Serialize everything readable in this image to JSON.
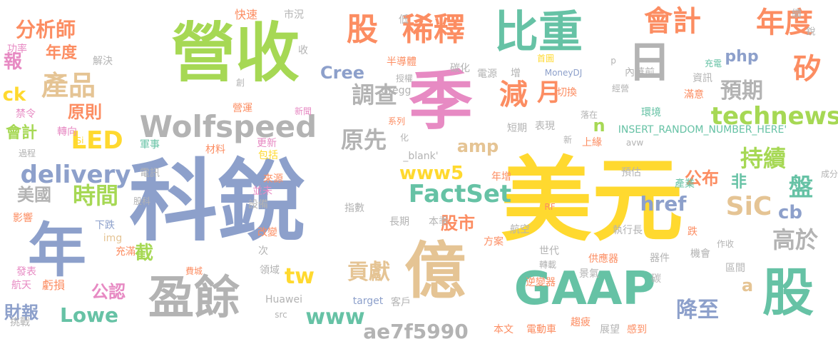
{
  "words": [
    {
      "text": "科銳",
      "color": "#8da0cb",
      "vertical": false
    },
    {
      "text": "美元",
      "color": "#ffd92f",
      "vertical": false
    },
    {
      "text": "營收",
      "color": "#a6d854",
      "vertical": false
    },
    {
      "text": "季",
      "color": "#e78ac3",
      "vertical": false
    },
    {
      "text": "年",
      "color": "#8da0cb",
      "vertical": false
    },
    {
      "text": "億",
      "color": "#e5c494",
      "vertical": false
    },
    {
      "text": "GAAP",
      "color": "#66c2a5",
      "vertical": false
    },
    {
      "text": "日",
      "color": "#b3b3b3",
      "vertical": true
    },
    {
      "text": "股",
      "color": "#66c2a5",
      "vertical": false
    },
    {
      "text": "盈餘",
      "color": "#b3b3b3",
      "vertical": false
    },
    {
      "text": "比重",
      "color": "#66c2a5",
      "vertical": false
    },
    {
      "text": "股",
      "color": "#fc8d62",
      "vertical": false
    },
    {
      "text": "稀釋",
      "color": "#fc8d62",
      "vertical": false
    },
    {
      "text": "會計",
      "color": "#fc8d62",
      "vertical": false
    },
    {
      "text": "年度",
      "color": "#fc8d62",
      "vertical": false
    },
    {
      "text": "Wolfspeed",
      "color": "#b3b3b3",
      "vertical": false
    },
    {
      "text": "減",
      "color": "#fc8d62",
      "vertical": false
    },
    {
      "text": "月",
      "color": "#fc8d62",
      "vertical": false
    },
    {
      "text": "矽",
      "color": "#fc8d62",
      "vertical": false
    },
    {
      "text": "technews",
      "color": "#a6d854",
      "vertical": false
    },
    {
      "text": "產品",
      "color": "#e5c494",
      "vertical": false
    },
    {
      "text": "分析師",
      "color": "#fc8d62",
      "vertical": false
    },
    {
      "text": "LED",
      "color": "#ffd92f",
      "vertical": false
    },
    {
      "text": "delivery",
      "color": "#8da0cb",
      "vertical": false
    },
    {
      "text": "FactSet",
      "color": "#66c2a5",
      "vertical": false
    },
    {
      "text": "www5",
      "color": "#ffd92f",
      "vertical": false
    },
    {
      "text": "SiC",
      "color": "#e5c494",
      "vertical": false
    },
    {
      "text": "調查",
      "color": "#b3b3b3",
      "vertical": false
    },
    {
      "text": "原先",
      "color": "#b3b3b3",
      "vertical": false
    },
    {
      "text": "預期",
      "color": "#b3b3b3",
      "vertical": false
    },
    {
      "text": "持續",
      "color": "#a6d854",
      "vertical": false
    },
    {
      "text": "高於",
      "color": "#b3b3b3",
      "vertical": false
    },
    {
      "text": "時間",
      "color": "#a6d854",
      "vertical": false
    },
    {
      "text": "盤",
      "color": "#66c2a5",
      "vertical": false
    },
    {
      "text": "降至",
      "color": "#8da0cb",
      "vertical": false
    },
    {
      "text": "貢獻",
      "color": "#e5c494",
      "vertical": false
    },
    {
      "text": "Lowe",
      "color": "#66c2a5",
      "vertical": false
    },
    {
      "text": "www",
      "color": "#66c2a5",
      "vertical": false
    },
    {
      "text": "ae7f5990",
      "color": "#b3b3b3",
      "vertical": false
    },
    {
      "text": "tw",
      "color": "#ffd92f",
      "vertical": false
    },
    {
      "text": "Cree",
      "color": "#8da0cb",
      "vertical": false
    },
    {
      "text": "href",
      "color": "#8da0cb",
      "vertical": false
    },
    {
      "text": "股市",
      "color": "#fc8d62",
      "vertical": false
    },
    {
      "text": "公布",
      "color": "#fc8d62",
      "vertical": false
    },
    {
      "text": "cb",
      "color": "#8da0cb",
      "vertical": false
    },
    {
      "text": "美國",
      "color": "#b3b3b3",
      "vertical": false
    },
    {
      "text": "財報",
      "color": "#8da0cb",
      "vertical": false
    },
    {
      "text": "公認",
      "color": "#e78ac3",
      "vertical": false
    },
    {
      "text": "截",
      "color": "#a6d854",
      "vertical": false
    },
    {
      "text": "報",
      "color": "#e78ac3",
      "vertical": false
    },
    {
      "text": "年度",
      "color": "#fc8d62",
      "vertical": false
    },
    {
      "text": "ck",
      "color": "#ffd92f",
      "vertical": false
    },
    {
      "text": "原則",
      "color": "#fc8d62",
      "vertical": false
    },
    {
      "text": "會計",
      "color": "#a6d854",
      "vertical": false
    },
    {
      "text": "非",
      "color": "#66c2a5",
      "vertical": false
    },
    {
      "text": "php",
      "color": "#8da0cb",
      "vertical": false
    },
    {
      "text": "amp",
      "color": "#e5c494",
      "vertical": false
    },
    {
      "text": "a",
      "color": "#e5c494",
      "vertical": false
    },
    {
      "text": "n",
      "color": "#a6d854",
      "vertical": false
    },
    {
      "text": "快速",
      "color": "#fc8d62",
      "vertical": false
    },
    {
      "text": "市況",
      "color": "#b3b3b3",
      "vertical": false
    },
    {
      "text": "低",
      "color": "#b3b3b3",
      "vertical": false
    },
    {
      "text": "收",
      "color": "#b3b3b3",
      "vertical": false
    },
    {
      "text": "首圖",
      "color": "#ffd92f",
      "vertical": false
    },
    {
      "text": "續",
      "color": "#b3b3b3",
      "vertical": false
    },
    {
      "text": "銳",
      "color": "#b3b3b3",
      "vertical": false
    },
    {
      "text": "功率",
      "color": "#e78ac3",
      "vertical": false
    },
    {
      "text": "解決",
      "color": "#b3b3b3",
      "vertical": false
    },
    {
      "text": "半導體",
      "color": "#fc8d62",
      "vertical": false
    },
    {
      "text": "碳化",
      "color": "#b3b3b3",
      "vertical": false
    },
    {
      "text": "授權",
      "color": "#b3b3b3",
      "vertical": false
    },
    {
      "text": "Gregg",
      "color": "#b3b3b3",
      "vertical": false
    },
    {
      "text": "電源",
      "color": "#b3b3b3",
      "vertical": false
    },
    {
      "text": "增",
      "color": "#b3b3b3",
      "vertical": false
    },
    {
      "text": "MoneyDJ",
      "color": "#8da0cb",
      "vertical": false
    },
    {
      "text": "內華前",
      "color": "#b3b3b3",
      "vertical": false
    },
    {
      "text": "充電",
      "color": "#66c2a5",
      "vertical": false
    },
    {
      "text": "資訊",
      "color": "#b3b3b3",
      "vertical": false
    },
    {
      "text": "切換",
      "color": "#fc8d62",
      "vertical": false
    },
    {
      "text": "經營",
      "color": "#b3b3b3",
      "vertical": false
    },
    {
      "text": "滿意",
      "color": "#fc8d62",
      "vertical": false
    },
    {
      "text": "禁令",
      "color": "#e78ac3",
      "vertical": false
    },
    {
      "text": "轉向",
      "color": "#e78ac3",
      "vertical": false
    },
    {
      "text": "創",
      "color": "#b3b3b3",
      "vertical": false
    },
    {
      "text": "新聞",
      "color": "#e78ac3",
      "vertical": false
    },
    {
      "text": "營運",
      "color": "#fc8d62",
      "vertical": false
    },
    {
      "text": "系列",
      "color": "#fc8d62",
      "vertical": false
    },
    {
      "text": "落在",
      "color": "#b3b3b3",
      "vertical": false
    },
    {
      "text": "環境",
      "color": "#66c2a5",
      "vertical": false
    },
    {
      "text": "表現",
      "color": "#b3b3b3",
      "vertical": false
    },
    {
      "text": "短期",
      "color": "#b3b3b3",
      "vertical": false
    },
    {
      "text": "INSERT_RANDOM_NUMBER_HERE'",
      "color": "#66c2a5",
      "vertical": false
    },
    {
      "text": "過程",
      "color": "#b3b3b3",
      "vertical": false
    },
    {
      "text": "Si",
      "color": "#ffd92f",
      "vertical": false
    },
    {
      "text": "軍事",
      "color": "#66c2a5",
      "vertical": false
    },
    {
      "text": "化",
      "color": "#b3b3b3",
      "vertical": false
    },
    {
      "text": "新",
      "color": "#b3b3b3",
      "vertical": false
    },
    {
      "text": "_blank'",
      "color": "#b3b3b3",
      "vertical": false
    },
    {
      "text": "上緣",
      "color": "#fc8d62",
      "vertical": false
    },
    {
      "text": "avw",
      "color": "#b3b3b3",
      "vertical": false
    },
    {
      "text": "材料",
      "color": "#fc8d62",
      "vertical": false
    },
    {
      "text": "更新",
      "color": "#e78ac3",
      "vertical": false
    },
    {
      "text": "包括",
      "color": "#ffd92f",
      "vertical": false
    },
    {
      "text": "電訊",
      "color": "#b3b3b3",
      "vertical": false
    },
    {
      "text": "年增",
      "color": "#fc8d62",
      "vertical": false
    },
    {
      "text": "預估",
      "color": "#b3b3b3",
      "vertical": false
    },
    {
      "text": "產業",
      "color": "#66c2a5",
      "vertical": false
    },
    {
      "text": "成分",
      "color": "#b3b3b3",
      "vertical": false
    },
    {
      "text": "來源",
      "color": "#fc8d62",
      "vertical": false
    },
    {
      "text": "並未",
      "color": "#e78ac3",
      "vertical": false
    },
    {
      "text": "設備",
      "color": "#b3b3b3",
      "vertical": false
    },
    {
      "text": "股科",
      "color": "#b3b3b3",
      "vertical": false
    },
    {
      "text": "指數",
      "color": "#b3b3b3",
      "vertical": false
    },
    {
      "text": "RF",
      "color": "#fc8d62",
      "vertical": false
    },
    {
      "text": "影響",
      "color": "#fc8d62",
      "vertical": false
    },
    {
      "text": "長期",
      "color": "#b3b3b3",
      "vertical": false
    },
    {
      "text": "本季",
      "color": "#b3b3b3",
      "vertical": false
    },
    {
      "text": "航空",
      "color": "#b3b3b3",
      "vertical": false
    },
    {
      "text": "執行長",
      "color": "#b3b3b3",
      "vertical": false
    },
    {
      "text": "跌",
      "color": "#fc8d62",
      "vertical": false
    },
    {
      "text": "作收",
      "color": "#b3b3b3",
      "vertical": false
    },
    {
      "text": "下跌",
      "color": "#8da0cb",
      "vertical": false
    },
    {
      "text": "改變",
      "color": "#fc8d62",
      "vertical": false
    },
    {
      "text": "img",
      "color": "#e5c494",
      "vertical": false
    },
    {
      "text": "方案",
      "color": "#fc8d62",
      "vertical": false
    },
    {
      "text": "充滿",
      "color": "#fc8d62",
      "vertical": false
    },
    {
      "text": "次",
      "color": "#b3b3b3",
      "vertical": false
    },
    {
      "text": "世代",
      "color": "#b3b3b3",
      "vertical": false
    },
    {
      "text": "機會",
      "color": "#b3b3b3",
      "vertical": false
    },
    {
      "text": "發表",
      "color": "#e78ac3",
      "vertical": false
    },
    {
      "text": "費城",
      "color": "#fc8d62",
      "vertical": false
    },
    {
      "text": "供應器",
      "color": "#fc8d62",
      "vertical": false
    },
    {
      "text": "器件",
      "color": "#b3b3b3",
      "vertical": false
    },
    {
      "text": "領域",
      "color": "#b3b3b3",
      "vertical": false
    },
    {
      "text": "轉載",
      "color": "#b3b3b3",
      "vertical": false
    },
    {
      "text": "景氣",
      "color": "#b3b3b3",
      "vertical": false
    },
    {
      "text": "區間",
      "color": "#b3b3b3",
      "vertical": false
    },
    {
      "text": "航天",
      "color": "#e78ac3",
      "vertical": false
    },
    {
      "text": "虧損",
      "color": "#fc8d62",
      "vertical": false
    },
    {
      "text": "逆變器",
      "color": "#fc8d62",
      "vertical": false
    },
    {
      "text": "碳",
      "color": "#b3b3b3",
      "vertical": false
    },
    {
      "text": "Huawei",
      "color": "#b3b3b3",
      "vertical": false
    },
    {
      "text": "target",
      "color": "#8da0cb",
      "vertical": false
    },
    {
      "text": "客戶",
      "color": "#b3b3b3",
      "vertical": false
    },
    {
      "text": "src",
      "color": "#b3b3b3",
      "vertical": false
    },
    {
      "text": "挑戰",
      "color": "#b3b3b3",
      "vertical": false
    },
    {
      "text": "本文",
      "color": "#fc8d62",
      "vertical": false
    },
    {
      "text": "電動車",
      "color": "#fc8d62",
      "vertical": false
    },
    {
      "text": "趨疲",
      "color": "#fc8d62",
      "vertical": false
    },
    {
      "text": "展望",
      "color": "#b3b3b3",
      "vertical": false
    },
    {
      "text": "感到",
      "color": "#fc8d62",
      "vertical": false
    },
    {
      "text": "p",
      "color": "#b3b3b3",
      "vertical": false
    }
  ]
}
